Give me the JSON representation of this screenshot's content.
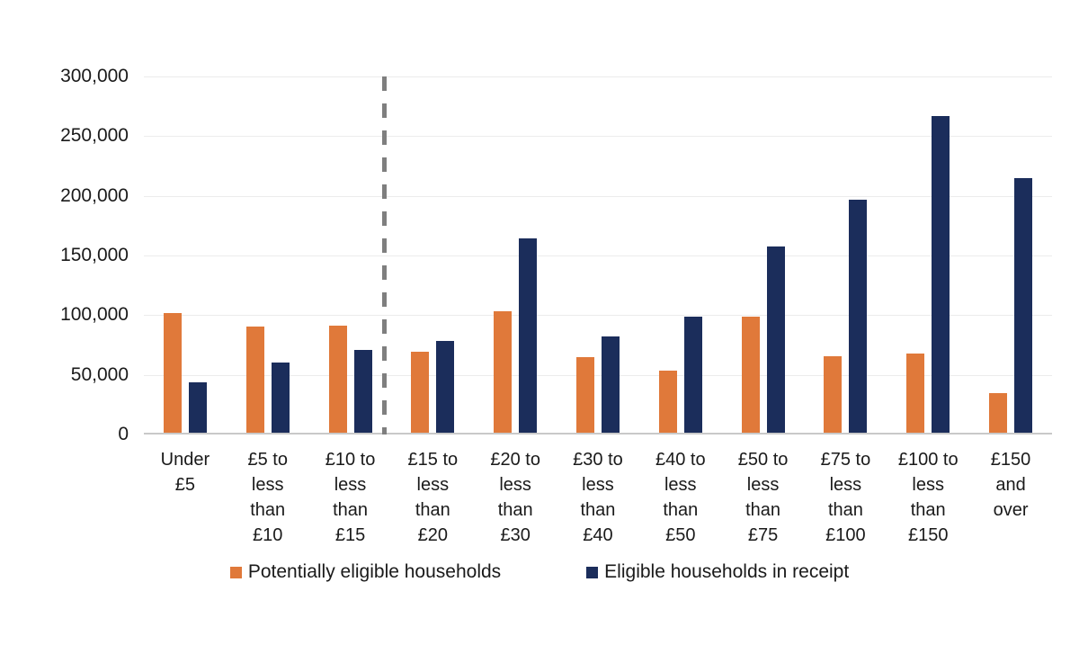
{
  "chart_data": {
    "type": "bar",
    "title": "",
    "xlabel": "",
    "ylabel": "",
    "categories": [
      "Under\n£5",
      "£5 to\nless\nthan\n£10",
      "£10 to\nless\nthan\n£15",
      "£15 to\nless\nthan\n£20",
      "£20 to\nless\nthan\n£30",
      "£30 to\nless\nthan\n£40",
      "£40 to\nless\nthan\n£50",
      "£50 to\nless\nthan\n£75",
      "£75 to\nless\nthan\n£100",
      "£100 to\nless\nthan\n£150",
      "£150\nand\nover"
    ],
    "series": [
      {
        "name": "Potentially eligible households",
        "color": "#E0793A",
        "values": [
          100000,
          89000,
          90000,
          68000,
          102000,
          63000,
          52000,
          97000,
          64000,
          66000,
          33000
        ]
      },
      {
        "name": "Eligible households in receipt",
        "color": "#1B2D5B",
        "values": [
          42000,
          59000,
          69000,
          77000,
          163000,
          81000,
          97000,
          156000,
          195000,
          265000,
          213000
        ]
      }
    ],
    "ylim": [
      0,
      300000
    ],
    "ytick_interval": 50000,
    "ytick_labels": [
      "0",
      "50,000",
      "100,000",
      "150,000",
      "200,000",
      "250,000",
      "300,000"
    ],
    "grid": "horizontal",
    "legend_position": "bottom",
    "annotations": {
      "dashed_vertical_divider": {
        "after_category_index": 2,
        "color": "#7f7f7f",
        "style": "dashed"
      }
    }
  }
}
